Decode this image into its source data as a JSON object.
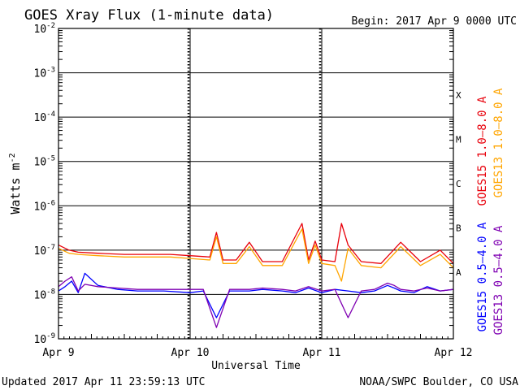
{
  "chart_data": {
    "type": "line",
    "title": "GOES Xray Flux (1-minute data)",
    "begin_label": "Begin:  2017 Apr 9 0000 UTC",
    "xlabel": "Universal Time",
    "ylabel": "Watts m",
    "ylabel_sup": "-2",
    "yscale": "log",
    "ylim": [
      1e-09,
      0.01
    ],
    "y_ticks": [
      {
        "base": "10",
        "exp": "-2"
      },
      {
        "base": "10",
        "exp": "-3"
      },
      {
        "base": "10",
        "exp": "-4"
      },
      {
        "base": "10",
        "exp": "-5"
      },
      {
        "base": "10",
        "exp": "-6"
      },
      {
        "base": "10",
        "exp": "-7"
      },
      {
        "base": "10",
        "exp": "-8"
      },
      {
        "base": "10",
        "exp": "-9"
      }
    ],
    "x_ticks": [
      "Apr 9",
      "Apr 10",
      "Apr 11",
      "Apr 12"
    ],
    "xlim_days": [
      0,
      3
    ],
    "flare_classes": [
      {
        "label": "X",
        "flux": 0.0001
      },
      {
        "label": "M",
        "flux": 1e-05
      },
      {
        "label": "C",
        "flux": 1e-06
      },
      {
        "label": "B",
        "flux": 1e-07
      },
      {
        "label": "A",
        "flux": 1e-08
      }
    ],
    "series": [
      {
        "name": "GOES15 1.0–8.0 A",
        "color": "#e8000b",
        "x": [
          0,
          0.08,
          0.15,
          0.3,
          0.5,
          0.7,
          0.85,
          1.0,
          1.15,
          1.2,
          1.25,
          1.35,
          1.45,
          1.55,
          1.7,
          1.85,
          1.9,
          1.95,
          2.0,
          2.1,
          2.15,
          2.2,
          2.3,
          2.45,
          2.6,
          2.75,
          2.9,
          3.0
        ],
        "values": [
          1.3e-07,
          1e-07,
          9e-08,
          8.5e-08,
          8e-08,
          8e-08,
          8e-08,
          7.5e-08,
          7e-08,
          2.5e-07,
          6e-08,
          6e-08,
          1.5e-07,
          5.5e-08,
          5.5e-08,
          4e-07,
          6e-08,
          1.6e-07,
          6e-08,
          5.5e-08,
          4e-07,
          1.3e-07,
          5.5e-08,
          5e-08,
          1.5e-07,
          5.5e-08,
          1e-07,
          5e-08
        ]
      },
      {
        "name": "GOES13 1.0–8.0 A",
        "color": "#ffa500",
        "x": [
          0,
          0.08,
          0.15,
          0.3,
          0.5,
          0.7,
          0.85,
          1.0,
          1.15,
          1.2,
          1.25,
          1.35,
          1.45,
          1.55,
          1.7,
          1.85,
          1.9,
          1.95,
          2.0,
          2.1,
          2.15,
          2.2,
          2.3,
          2.45,
          2.6,
          2.75,
          2.9,
          3.0
        ],
        "values": [
          1.1e-07,
          8.5e-08,
          8e-08,
          7.5e-08,
          7e-08,
          7e-08,
          7e-08,
          6.5e-08,
          6e-08,
          2e-07,
          5e-08,
          5e-08,
          1.2e-07,
          4.5e-08,
          4.5e-08,
          3e-07,
          5e-08,
          1.3e-07,
          5e-08,
          4.5e-08,
          2e-08,
          1.1e-07,
          4.5e-08,
          4e-08,
          1.2e-07,
          4.5e-08,
          8e-08,
          4e-08
        ]
      },
      {
        "name": "GOES15 0.5–4.0 A",
        "color": "#0000ff",
        "x": [
          0,
          0.05,
          0.1,
          0.15,
          0.2,
          0.3,
          0.45,
          0.6,
          0.8,
          1.0,
          1.1,
          1.2,
          1.3,
          1.45,
          1.55,
          1.7,
          1.8,
          1.9,
          2.0,
          2.1,
          2.2,
          2.3,
          2.4,
          2.5,
          2.55,
          2.6,
          2.7,
          2.8,
          2.9,
          3.0
        ],
        "values": [
          1.2e-08,
          1.5e-08,
          2e-08,
          1.1e-08,
          3e-08,
          1.6e-08,
          1.3e-08,
          1.2e-08,
          1.2e-08,
          1.1e-08,
          1.2e-08,
          3e-09,
          1.2e-08,
          1.2e-08,
          1.3e-08,
          1.2e-08,
          1.1e-08,
          1.4e-08,
          1.1e-08,
          1.3e-08,
          1.2e-08,
          1.1e-08,
          1.2e-08,
          1.6e-08,
          1.4e-08,
          1.2e-08,
          1.1e-08,
          1.5e-08,
          1.2e-08,
          1.3e-08
        ]
      },
      {
        "name": "GOES13 0.5–4.0 A",
        "color": "#7f00b2",
        "x": [
          0,
          0.05,
          0.1,
          0.15,
          0.2,
          0.3,
          0.45,
          0.6,
          0.8,
          1.0,
          1.1,
          1.2,
          1.3,
          1.45,
          1.55,
          1.7,
          1.8,
          1.9,
          2.0,
          2.1,
          2.2,
          2.3,
          2.4,
          2.5,
          2.55,
          2.6,
          2.7,
          2.8,
          2.9,
          3.0
        ],
        "values": [
          1.5e-08,
          2e-08,
          2.5e-08,
          1.2e-08,
          1.7e-08,
          1.5e-08,
          1.4e-08,
          1.3e-08,
          1.3e-08,
          1.3e-08,
          1.3e-08,
          1.8e-09,
          1.3e-08,
          1.3e-08,
          1.4e-08,
          1.3e-08,
          1.2e-08,
          1.5e-08,
          1.2e-08,
          1.3e-08,
          3e-09,
          1.2e-08,
          1.3e-08,
          1.8e-08,
          1.6e-08,
          1.3e-08,
          1.2e-08,
          1.4e-08,
          1.2e-08,
          1.3e-08
        ]
      }
    ]
  },
  "footer": {
    "updated": "Updated 2017 Apr 11 23:59:13 UTC",
    "source": "NOAA/SWPC Boulder, CO USA"
  }
}
